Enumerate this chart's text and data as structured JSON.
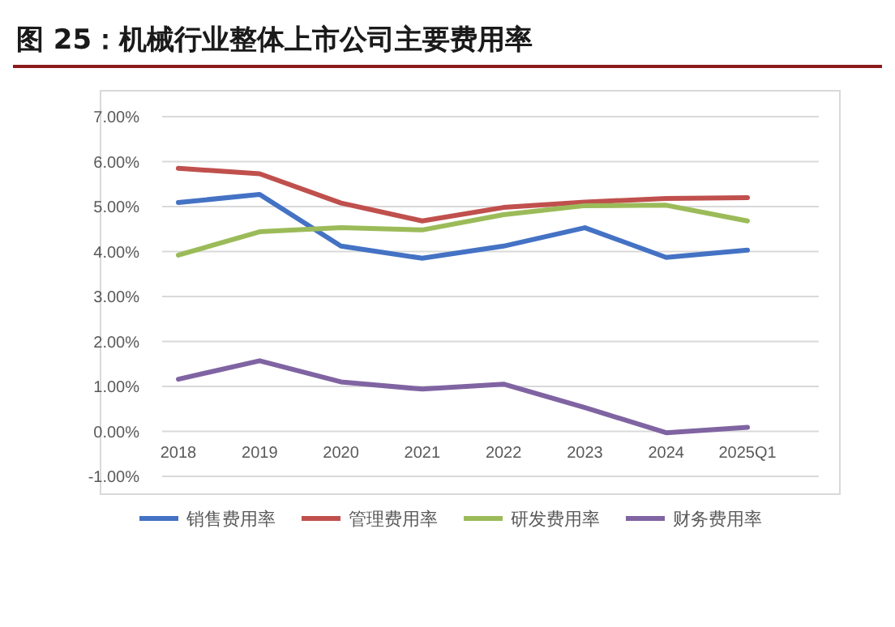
{
  "chart_data": {
    "type": "line",
    "title": "图 25：机械行业整体上市公司主要费用率",
    "categories": [
      "2018",
      "2019",
      "2020",
      "2021",
      "2022",
      "2023",
      "2024",
      "2025Q1"
    ],
    "series": [
      {
        "name": "销售费用率",
        "color": "#4472c4",
        "values": [
          5.09,
          5.27,
          4.12,
          3.85,
          4.12,
          4.53,
          3.87,
          4.03
        ]
      },
      {
        "name": "管理费用率",
        "color": "#c0504d",
        "values": [
          5.85,
          5.73,
          5.08,
          4.68,
          4.98,
          5.1,
          5.18,
          5.2
        ]
      },
      {
        "name": "研发费用率",
        "color": "#9bbb59",
        "values": [
          3.92,
          4.44,
          4.53,
          4.48,
          4.82,
          5.02,
          5.03,
          4.68
        ]
      },
      {
        "name": "财务费用率",
        "color": "#8064a2",
        "values": [
          1.16,
          1.57,
          1.1,
          0.94,
          1.05,
          0.53,
          -0.03,
          0.09
        ]
      }
    ],
    "ylim": [
      -1,
      7
    ],
    "yticks": [
      {
        "value": -1,
        "label": "-1.00%"
      },
      {
        "value": 0,
        "label": "0.00%"
      },
      {
        "value": 1,
        "label": "1.00%"
      },
      {
        "value": 2,
        "label": "2.00%"
      },
      {
        "value": 3,
        "label": "3.00%"
      },
      {
        "value": 4,
        "label": "4.00%"
      },
      {
        "value": 5,
        "label": "5.00%"
      },
      {
        "value": 6,
        "label": "6.00%"
      },
      {
        "value": 7,
        "label": "7.00%"
      }
    ],
    "grid": "y",
    "legend": "bottom",
    "marker": "none",
    "line_style": "solid"
  }
}
